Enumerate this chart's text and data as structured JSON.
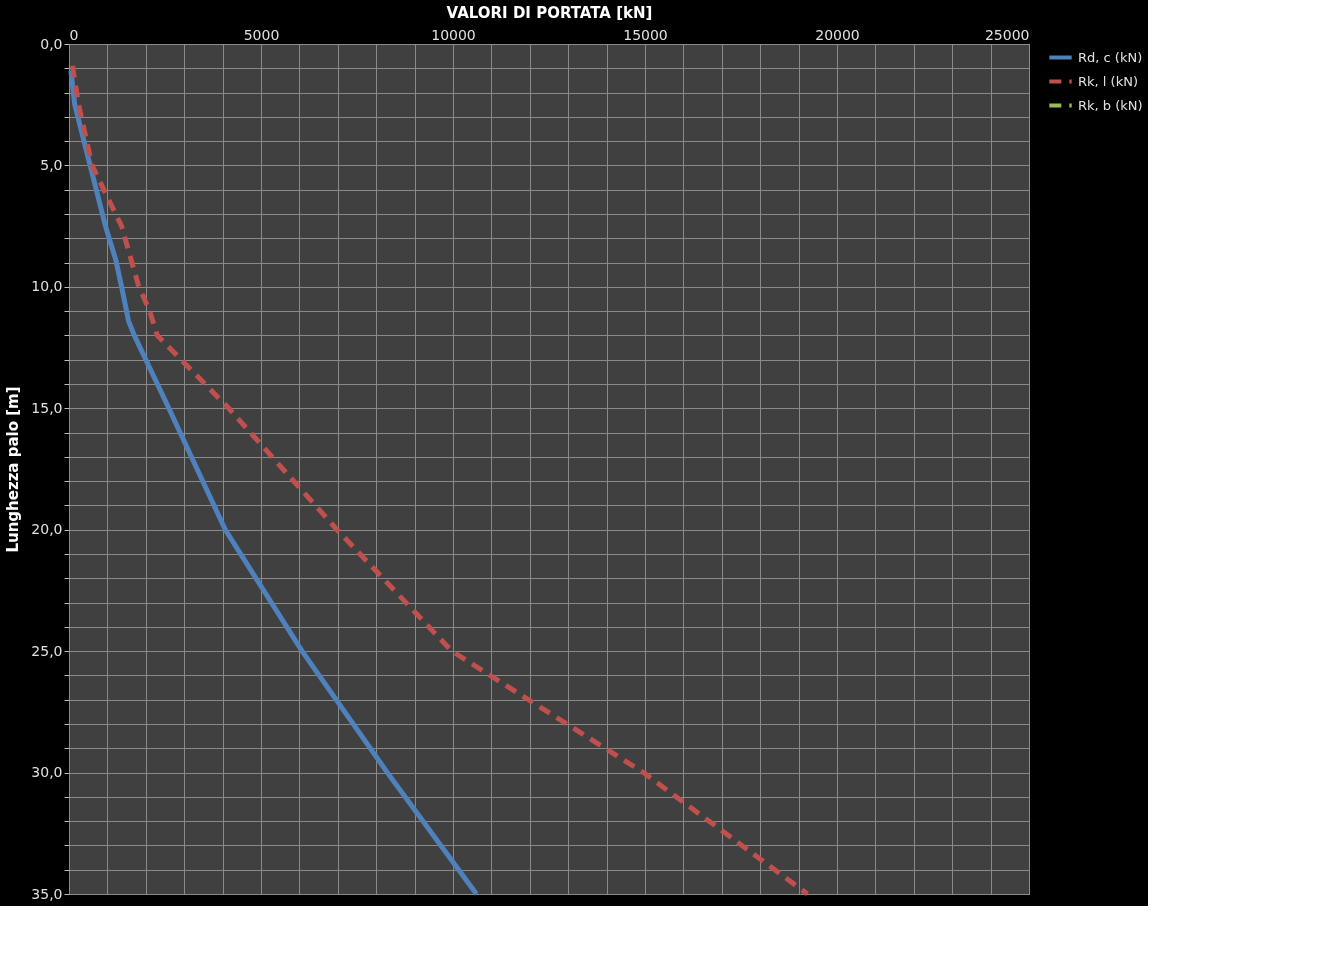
{
  "chart_data": {
    "type": "line",
    "xlabel": "VALORI DI PORTATA [kN]",
    "ylabel": "Lunghezza palo [m]",
    "xlim": [
      0,
      25000
    ],
    "xticks": [
      0,
      {
        "value": 1000,
        "label": null
      },
      {
        "value": 2000,
        "label": null
      },
      {
        "value": 3000,
        "label": null
      },
      {
        "value": 4000,
        "label": null
      },
      5000,
      {
        "value": 6000,
        "label": null
      },
      {
        "value": 7000,
        "label": null
      },
      {
        "value": 8000,
        "label": null
      },
      {
        "value": 9000,
        "label": null
      },
      10000,
      {
        "value": 11000,
        "label": null
      },
      {
        "value": 12000,
        "label": null
      },
      {
        "value": 13000,
        "label": null
      },
      {
        "value": 14000,
        "label": null
      },
      15000,
      {
        "value": 16000,
        "label": null
      },
      {
        "value": 17000,
        "label": null
      },
      {
        "value": 18000,
        "label": null
      },
      {
        "value": 19000,
        "label": null
      },
      20000,
      {
        "value": 21000,
        "label": null
      },
      {
        "value": 22000,
        "label": null
      },
      {
        "value": 23000,
        "label": null
      },
      {
        "value": 24000,
        "label": null
      },
      25000
    ],
    "ylim": [
      35,
      0
    ],
    "yticks": [
      {
        "value": 0,
        "label": "0,0"
      },
      {
        "value": 1,
        "label": null
      },
      {
        "value": 2,
        "label": null
      },
      {
        "value": 3,
        "label": null
      },
      {
        "value": 4,
        "label": null
      },
      {
        "value": 5,
        "label": "5,0"
      },
      {
        "value": 6,
        "label": null
      },
      {
        "value": 7,
        "label": null
      },
      {
        "value": 8,
        "label": null
      },
      {
        "value": 9,
        "label": null
      },
      {
        "value": 10,
        "label": "10,0"
      },
      {
        "value": 11,
        "label": null
      },
      {
        "value": 12,
        "label": null
      },
      {
        "value": 13,
        "label": null
      },
      {
        "value": 14,
        "label": null
      },
      {
        "value": 15,
        "label": "15,0"
      },
      {
        "value": 16,
        "label": null
      },
      {
        "value": 17,
        "label": null
      },
      {
        "value": 18,
        "label": null
      },
      {
        "value": 19,
        "label": null
      },
      {
        "value": 20,
        "label": "20,0"
      },
      {
        "value": 21,
        "label": null
      },
      {
        "value": 22,
        "label": null
      },
      {
        "value": 23,
        "label": null
      },
      {
        "value": 24,
        "label": null
      },
      {
        "value": 25,
        "label": "25,0"
      },
      {
        "value": 26,
        "label": null
      },
      {
        "value": 27,
        "label": null
      },
      {
        "value": 28,
        "label": null
      },
      {
        "value": 29,
        "label": null
      },
      {
        "value": 30,
        "label": "30,0"
      },
      {
        "value": 31,
        "label": null
      },
      {
        "value": 32,
        "label": null
      },
      {
        "value": 33,
        "label": null
      },
      {
        "value": 34,
        "label": null
      },
      {
        "value": 35,
        "label": "35,0"
      }
    ],
    "grid": true,
    "legend": "right",
    "marker": "none",
    "series": [
      {
        "name": "Rd, c (kN)",
        "color": "#4f81bd",
        "line_style": "solid",
        "x": [
          50,
          150,
          550,
          950,
          1220,
          1370,
          1550,
          1700,
          2600,
          4070,
          6070,
          8290,
          10610
        ],
        "values": [
          1.1,
          2.5,
          5,
          7.5,
          8.9,
          10,
          11.4,
          12,
          15,
          20,
          25,
          30,
          35
        ]
      },
      {
        "name": "Rk, l (kN)",
        "color": "#c0504d",
        "line_style": "dashed",
        "x": [
          90,
          250,
          600,
          1370,
          1800,
          2100,
          2300,
          4160,
          6980,
          9970,
          14960,
          19230
        ],
        "values": [
          0.9,
          2.5,
          5,
          7.5,
          9.9,
          11,
          12,
          15,
          20,
          25,
          30,
          35
        ]
      },
      {
        "name": "Rk, b (kN)",
        "color": "#9bbb59",
        "line_style": "dashed"
      }
    ]
  }
}
